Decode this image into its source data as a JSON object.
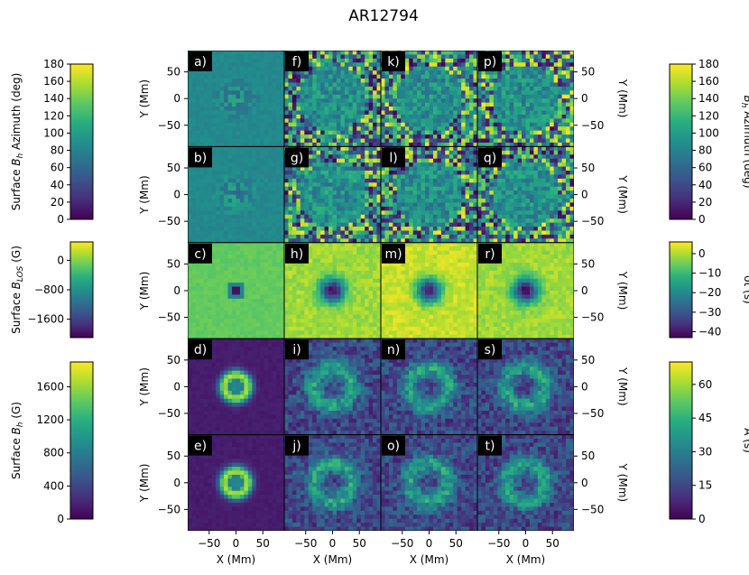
{
  "chart_data": {
    "type": "heatmap",
    "title": "AR12794",
    "rows": 5,
    "cols": 4,
    "panel_labels": [
      [
        "a)",
        "f)",
        "k)",
        "p)"
      ],
      [
        "b)",
        "g)",
        "l)",
        "q)"
      ],
      [
        "c)",
        "h)",
        "m)",
        "r)"
      ],
      [
        "d)",
        "i)",
        "n)",
        "s)"
      ],
      [
        "e)",
        "j)",
        "o)",
        "t)"
      ]
    ],
    "xlabel": "X (Mm)",
    "ylabel": "Y (Mm)",
    "x_ticks": [
      "−50",
      "0",
      "50"
    ],
    "y_ticks": [
      "50",
      "0",
      "−50"
    ],
    "xlim": [
      -90,
      90
    ],
    "ylim": [
      -90,
      90
    ],
    "row_quantity": [
      "azimuth",
      "azimuth",
      "los",
      "bh",
      "bh"
    ],
    "colormap": "viridis",
    "left_colorbars": [
      {
        "label": "Surface B_h Azimuth (deg)",
        "label_parts": [
          "Surface ",
          "B",
          "h",
          " Azimuth (deg)"
        ],
        "range": [
          0,
          180
        ],
        "ticks": [
          "180",
          "160",
          "140",
          "120",
          "100",
          "80",
          "60",
          "40",
          "20",
          "0"
        ]
      },
      {
        "label": "Surface B_LOS (G)",
        "label_parts": [
          "Surface ",
          "B",
          "LOS",
          " (G)"
        ],
        "range": [
          -2100,
          500
        ],
        "ticks": [
          "0",
          "−800",
          "−1600"
        ]
      },
      {
        "label": "Surface B_h (G)",
        "label_parts": [
          "Surface ",
          "B",
          "h",
          " (G)"
        ],
        "range": [
          0,
          1900
        ],
        "ticks": [
          "1600",
          "1200",
          "800",
          "400",
          "0"
        ]
      }
    ],
    "right_colorbars": [
      {
        "label": "B_h Azimuth (deg)",
        "label_parts": [
          "",
          "B",
          "h",
          " Azimuth (deg)"
        ],
        "range": [
          0,
          180
        ],
        "ticks": [
          "180",
          "160",
          "140",
          "120",
          "100",
          "80",
          "60",
          "40",
          "20",
          "0"
        ]
      },
      {
        "label": "δt (s)",
        "label_parts": [
          "δt (s)",
          "",
          "",
          ""
        ],
        "range": [
          -43,
          6
        ],
        "ticks": [
          "0",
          "−10",
          "−20",
          "−30",
          "−40"
        ]
      },
      {
        "label": "A (s)",
        "label_parts": [
          "A (s)",
          "",
          "",
          ""
        ],
        "range": [
          0,
          70
        ],
        "ticks": [
          "60",
          "45",
          "30",
          "15",
          "0"
        ]
      }
    ]
  }
}
